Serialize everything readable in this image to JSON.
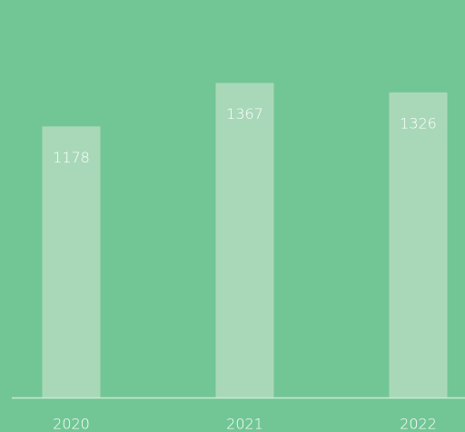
{
  "chart_data": {
    "type": "bar",
    "categories": [
      "2020",
      "2021",
      "2022"
    ],
    "values": [
      1178,
      1367,
      1326
    ],
    "color": "#a9d8b9",
    "background": "#72c695",
    "ylim": [
      0,
      1550
    ],
    "show_value_labels": true
  }
}
